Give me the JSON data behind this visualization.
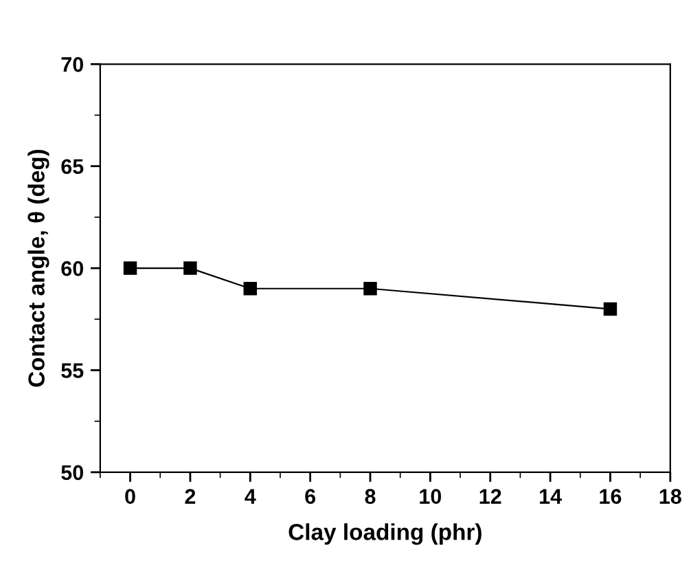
{
  "chart_data": {
    "type": "line",
    "xlabel": "Clay loading (phr)",
    "ylabel": "Contact angle, θ (deg)",
    "x": [
      0,
      2,
      4,
      8,
      16
    ],
    "series": [
      {
        "color": "#000000",
        "values": [
          60,
          60,
          59,
          59,
          58
        ]
      }
    ],
    "xlim": [
      -1,
      18
    ],
    "xticks": [
      0,
      2,
      4,
      6,
      8,
      10,
      12,
      14,
      16,
      18
    ],
    "ylim": [
      50,
      70
    ],
    "yticks": [
      50,
      55,
      60,
      65,
      70
    ],
    "grid": false,
    "legend": false,
    "marker": "square",
    "line_style": "solid"
  }
}
